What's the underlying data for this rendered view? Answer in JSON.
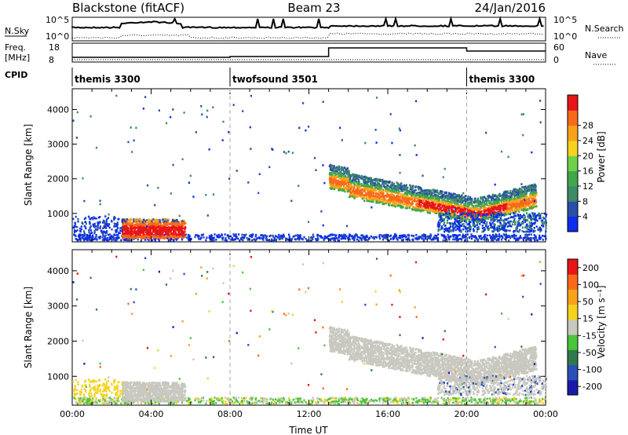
{
  "header": {
    "station": "Blackstone (fitACF)",
    "beam": "Beam 23",
    "date": "24/Jan/2016"
  },
  "summary": {
    "nsky_label": "N.Sky",
    "nsky_ticks": [
      "10^5",
      "10^0"
    ],
    "nsearch_label": "N.Search",
    "nsearch_ticks": [
      "10^5",
      "10^0"
    ],
    "freq_label": "Freq.",
    "freq_unit": "[MHz]",
    "freq_ticks": [
      "18",
      "8"
    ],
    "nave_label": "Nave",
    "nave_ticks": [
      "60",
      "0"
    ],
    "cpid_label": "CPID",
    "cpid_segments": [
      {
        "name": "themis 3300",
        "start_h": 0,
        "end_h": 8
      },
      {
        "name": "twofsound 3501",
        "start_h": 8,
        "end_h": 20
      },
      {
        "name": "themis 3300",
        "start_h": 20,
        "end_h": 24
      }
    ]
  },
  "chart_data": [
    {
      "type": "heatmap",
      "ylabel": "Slant Range [km]",
      "x_range_h": [
        0,
        24
      ],
      "ylim": [
        180,
        4600
      ],
      "yticks": [
        "1000",
        "2000",
        "3000",
        "4000"
      ],
      "colorbar": {
        "label": "Power [dB]",
        "ticks": [
          "4",
          "8",
          "12",
          "16",
          "20",
          "24",
          "28"
        ]
      }
    },
    {
      "type": "heatmap",
      "xlabel": "Time UT",
      "ylabel": "Slant Range [km]",
      "x_range_h": [
        0,
        24
      ],
      "ylim": [
        180,
        4600
      ],
      "xticks": [
        "00:00",
        "04:00",
        "08:00",
        "12:00",
        "16:00",
        "20:00",
        "00:00"
      ],
      "yticks": [
        "1000",
        "2000",
        "3000",
        "4000"
      ],
      "colorbar": {
        "label": "Velocity [m s⁻¹]",
        "ticks": [
          "200",
          "100",
          "50",
          "15",
          "-15",
          "-50",
          "-100",
          "-200"
        ]
      }
    }
  ],
  "colors": {
    "power": [
      "#0a2eea",
      "#2a4fa8",
      "#3d8a66",
      "#3fa84a",
      "#6fd14a",
      "#f4d21e",
      "#f8a21a",
      "#f86a1a",
      "#e81616"
    ],
    "velocity": [
      "#1a1aaa",
      "#2a50b8",
      "#2e7a4a",
      "#4ac43a",
      "#c8c8c0",
      "#f4d21e",
      "#f8a21a",
      "#f86a1a",
      "#e81616"
    ]
  }
}
